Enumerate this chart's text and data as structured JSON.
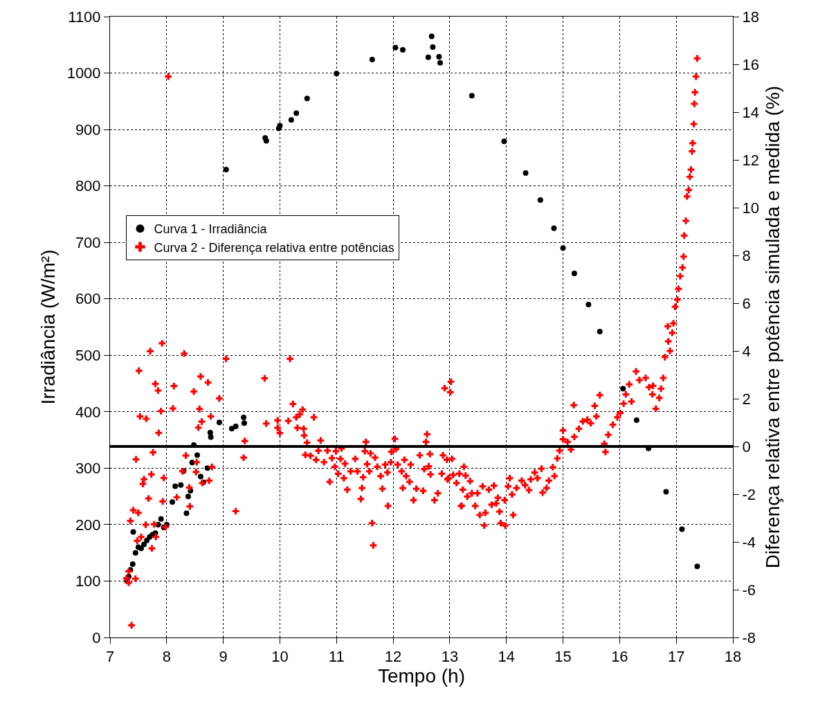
{
  "chart_data": {
    "type": "scatter",
    "xlabel": "Tempo (h)",
    "ylabel": "Irradiância (W/m²)",
    "y2label": "Diferença relativa entre potência simulada e medida (%)",
    "xlim": [
      7,
      18
    ],
    "xticks": [
      7,
      8,
      9,
      10,
      11,
      12,
      13,
      14,
      15,
      16,
      17,
      18
    ],
    "ylim": [
      0,
      1100
    ],
    "yticks": [
      0,
      100,
      200,
      300,
      400,
      500,
      600,
      700,
      800,
      900,
      1000,
      1100
    ],
    "y2lim": [
      -8,
      18
    ],
    "y2ticks": [
      -8,
      -6,
      -4,
      -2,
      0,
      2,
      4,
      6,
      8,
      10,
      12,
      14,
      16,
      18
    ],
    "grid": true,
    "legend": "left",
    "ref_lines": [
      {
        "axis": "y2",
        "value": 0,
        "color": "#000000"
      }
    ],
    "series": [
      {
        "name": "Curva 1 - Irradiância",
        "color": "#000000",
        "marker": "circle",
        "x": [
          7.3,
          7.33,
          7.36,
          7.4,
          7.41,
          7.45,
          7.5,
          7.55,
          7.6,
          7.65,
          7.7,
          7.75,
          7.8,
          7.85,
          7.9,
          7.95,
          8.0,
          8.1,
          8.15,
          8.25,
          8.3,
          8.35,
          8.38,
          8.42,
          8.45,
          8.48,
          8.54,
          8.6,
          8.65,
          8.72,
          8.77,
          8.78,
          8.93,
          9.05,
          9.15,
          9.22,
          9.36,
          9.37,
          9.74,
          9.76,
          9.98,
          10.0,
          10.2,
          10.29,
          10.48,
          11.0,
          11.63,
          12.04,
          12.17,
          12.62,
          12.68,
          12.7,
          12.81,
          12.83,
          13.39,
          13.96,
          14.34,
          14.6,
          14.84,
          15.0,
          15.2,
          15.45,
          15.65,
          16.06,
          16.3,
          16.51,
          16.82,
          17.1,
          17.37
        ],
        "values": [
          100,
          108,
          120,
          130,
          187,
          150,
          160,
          158,
          165,
          172,
          178,
          182,
          185,
          200,
          210,
          195,
          200,
          240,
          268,
          270,
          295,
          220,
          250,
          260,
          310,
          341,
          323,
          285,
          275,
          300,
          363,
          355,
          381,
          829,
          370,
          374,
          390,
          380,
          885,
          880,
          902,
          907,
          917,
          929,
          955,
          999,
          1024,
          1045,
          1041,
          1028,
          1065,
          1046,
          1029,
          1018,
          960,
          879,
          823,
          775,
          725,
          690,
          645,
          590,
          542,
          441,
          385,
          335,
          258,
          192,
          126
        ]
      },
      {
        "name": "Curva 2 - Diferença relativa entre potências",
        "color": "#ff0000",
        "marker": "cross",
        "axis": "y2",
        "x": [
          7.92,
          7.71,
          8.31,
          9.05,
          7.51,
          8.6,
          8.73,
          9.73,
          7.8,
          8.13,
          7.85,
          8.48,
          8.93,
          7.9,
          8.11,
          8.58,
          7.53,
          7.64,
          8.78,
          8.62,
          8.56,
          9.76,
          9.96,
          10.0,
          7.86,
          9.38,
          7.76,
          7.46,
          8.34,
          9.36,
          8.53,
          8.8,
          7.73,
          7.6,
          7.95,
          7.58,
          8.28,
          8.52,
          8.75,
          8.63,
          8.4,
          8.18,
          7.68,
          7.93,
          8.41,
          9.22,
          7.41,
          7.5,
          7.36,
          7.63,
          7.78,
          7.98,
          7.55,
          7.48,
          7.81,
          7.74,
          7.33,
          7.45,
          7.29,
          7.33,
          7.38,
          8.03,
          10.18,
          10.23,
          10.4,
          10.15,
          10.29,
          10.35,
          10.6,
          9.96,
          10.31,
          10.42,
          10.43,
          10.48,
          10.72,
          10.68,
          10.45,
          10.54,
          10.84,
          10.64,
          10.78,
          10.92,
          10.99,
          11.09,
          11.07,
          10.97,
          11.15,
          11.03,
          11.13,
          10.88,
          11.19,
          11.33,
          11.37,
          11.25,
          11.52,
          11.5,
          11.6,
          11.54,
          11.58,
          11.47,
          11.45,
          11.43,
          11.68,
          11.72,
          11.78,
          11.81,
          11.63,
          11.65,
          11.91,
          11.86,
          11.97,
          12.03,
          12.05,
          11.96,
          11.9,
          12.08,
          12.15,
          12.2,
          12.23,
          12.17,
          12.31,
          12.29,
          12.36,
          12.41,
          12.47,
          12.6,
          12.58,
          12.55,
          12.65,
          12.63,
          12.66,
          12.53,
          12.73,
          12.79,
          12.88,
          12.95,
          13.04,
          12.91,
          13.02,
          13.01,
          12.86,
          12.98,
          13.06,
          13.17,
          13.12,
          13.25,
          13.23,
          13.21,
          13.31,
          12.96,
          13.28,
          13.36,
          13.2,
          13.39,
          13.45,
          13.49,
          13.53,
          13.58,
          13.63,
          13.61,
          13.69,
          13.74,
          13.78,
          13.82,
          13.85,
          13.88,
          13.9,
          13.98,
          13.97,
          14.03,
          14.06,
          14.1,
          14.12,
          14.18,
          14.27,
          14.33,
          14.4,
          14.43,
          14.5,
          14.55,
          14.62,
          14.64,
          14.71,
          14.75,
          14.82,
          14.85,
          14.9,
          14.94,
          15.0,
          15.0,
          15.08,
          15.14,
          15.19,
          15.2,
          15.28,
          15.35,
          15.43,
          15.49,
          15.56,
          15.59,
          15.65,
          15.73,
          15.75,
          15.8,
          15.88,
          15.96,
          16.01,
          16.07,
          16.11,
          16.17,
          16.21,
          16.29,
          16.35,
          16.46,
          16.52,
          16.59,
          16.58,
          16.64,
          16.7,
          16.73,
          16.77,
          16.8,
          16.85,
          16.89,
          16.86,
          16.93,
          16.95,
          16.98,
          17.02,
          17.04,
          17.07,
          17.11,
          17.13,
          17.14,
          17.17,
          17.19,
          17.22,
          17.24,
          17.26,
          17.28,
          17.29,
          17.31,
          17.32,
          17.33,
          17.35,
          17.37
        ],
        "values": [
          4.32,
          3.99,
          3.89,
          3.67,
          3.17,
          2.93,
          2.68,
          2.85,
          2.62,
          2.53,
          2.34,
          2.3,
          2.01,
          1.48,
          1.59,
          1.57,
          1.26,
          1.16,
          1.26,
          1.04,
          0.79,
          0.96,
          1.09,
          0.56,
          0.57,
          0.23,
          -0.25,
          -0.54,
          -0.38,
          -0.47,
          -0.66,
          -0.86,
          -1.17,
          -1.37,
          -1.32,
          -1.57,
          -1.04,
          -1.07,
          -1.43,
          -1.53,
          -1.72,
          -2.13,
          -2.18,
          -2.3,
          -2.51,
          -2.71,
          -2.67,
          -2.78,
          -3.12,
          -3.28,
          -3.26,
          -3.38,
          -3.79,
          -3.95,
          -3.79,
          -4.27,
          -5.23,
          -5.54,
          -5.52,
          -5.71,
          -7.49,
          15.49,
          3.67,
          1.78,
          1.54,
          1.07,
          1.22,
          1.34,
          1.22,
          0.78,
          0.78,
          0.74,
          0.46,
          0.16,
          0.25,
          -0.18,
          -0.35,
          -0.39,
          -0.18,
          -0.56,
          -0.66,
          -0.49,
          -0.2,
          -0.08,
          -0.52,
          -0.85,
          -0.72,
          -1.14,
          -1.33,
          -1.48,
          -1.81,
          -0.52,
          -1.04,
          -1.04,
          0.19,
          -0.2,
          -0.29,
          -0.74,
          -1.04,
          -1.29,
          -1.74,
          -2.2,
          -0.47,
          -0.85,
          -1.24,
          -1.77,
          -3.21,
          -4.14,
          -2.49,
          -0.76,
          -0.22,
          0.32,
          -0.11,
          -0.66,
          -1.09,
          -0.76,
          -1.04,
          -0.56,
          -1.24,
          -1.74,
          -0.76,
          -1.48,
          -2.25,
          -1.77,
          -0.37,
          0.51,
          0.19,
          -0.95,
          -0.32,
          -0.83,
          -1.17,
          -1.86,
          -2.25,
          -1.96,
          -0.37,
          -0.56,
          -0.52,
          2.44,
          2.71,
          2.27,
          -1.14,
          -1.33,
          -1.19,
          -1.14,
          -1.53,
          -0.85,
          -1.81,
          -2.49,
          -2.1,
          -1.38,
          -1.22,
          -1.45,
          -2.49,
          -1.96,
          -2.49,
          -1.96,
          -2.87,
          -1.67,
          -2.78,
          -3.31,
          -1.81,
          -2.44,
          -1.64,
          -2.39,
          -2.15,
          -2.73,
          -3.21,
          -3.31,
          -2.25,
          -1.67,
          -1.33,
          -2.01,
          -2.87,
          -1.74,
          -1.43,
          -1.62,
          -1.83,
          -1.38,
          -1.09,
          -1.33,
          -0.93,
          -1.93,
          -1.74,
          -1.43,
          -0.87,
          -1.24,
          -0.5,
          -0.18,
          0.3,
          0.67,
          0.19,
          -0.13,
          1.73,
          0.4,
          0.74,
          1.05,
          1.12,
          0.97,
          1.7,
          1.26,
          2.15,
          0.11,
          -0.23,
          0.49,
          0.91,
          1.22,
          1.4,
          1.79,
          2.18,
          2.6,
          1.88,
          3.14,
          2.78,
          2.87,
          2.48,
          2.54,
          2.18,
          1.58,
          2.03,
          2.42,
          2.87,
          3.74,
          5.03,
          4.0,
          4.4,
          4.76,
          5.16,
          5.85,
          6.15,
          6.6,
          7.13,
          7.49,
          7.95,
          8.83,
          9.45,
          10.47,
          10.74,
          11.29,
          11.59,
          12.36,
          12.7,
          13.5,
          14.35,
          14.83,
          15.49,
          16.25
        ]
      }
    ]
  }
}
